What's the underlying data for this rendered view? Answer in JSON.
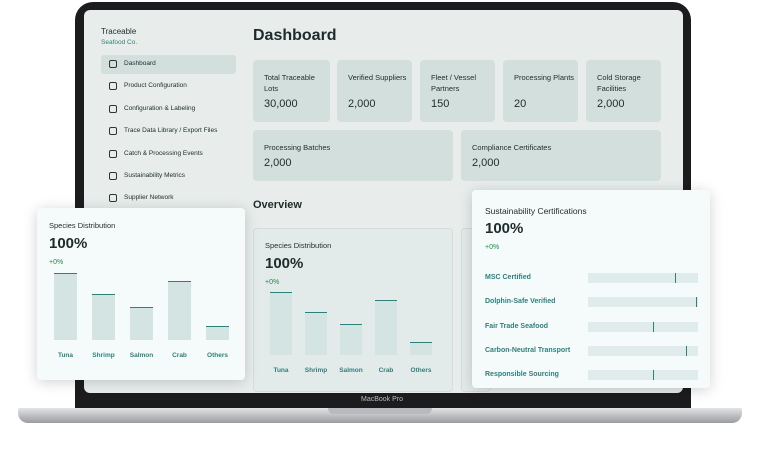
{
  "device_label": "MacBook Pro",
  "sidebar": {
    "brand": "Traceable",
    "subtitle": "Seafood Co.",
    "nav": [
      "Dashboard",
      "Product Configuration",
      "Configuration & Labeling",
      "Trace Data Library / Export Files",
      "Catch & Processing Events",
      "Sustainability Metrics",
      "Supplier Network"
    ]
  },
  "header": {
    "title": "Dashboard"
  },
  "stats": [
    {
      "label": "Total Traceable Lots",
      "value": "30,000"
    },
    {
      "label": "Verified Suppliers",
      "value": "2,000"
    },
    {
      "label": "Fleet / Vessel Partners",
      "value": "150"
    },
    {
      "label": "Processing Plants",
      "value": "20"
    },
    {
      "label": "Cold Storage Facilities",
      "value": "2,000"
    },
    {
      "label": "Processing Batches",
      "value": "2,000"
    },
    {
      "label": "Compliance Certificates",
      "value": "2,000"
    }
  ],
  "section_title": "Overview",
  "chart_data": [
    {
      "type": "bar",
      "title": "Species Distribution",
      "total": "100%",
      "change": "+0%",
      "categories": [
        "Tuna",
        "Shrimp",
        "Salmon",
        "Crab",
        "Others"
      ],
      "values": [
        67,
        46,
        33,
        59,
        14
      ],
      "color": "#d3e4e2",
      "edge_color": "#2f7f7a"
    },
    {
      "type": "hbar",
      "title": "Sustainability Certifications",
      "total": "100%",
      "change": "+0%",
      "categories": [
        "MSC Certified",
        "Dolphin-Safe Verified",
        "Fair Trade Seafood",
        "Carbon-Neutral Transport",
        "Responsible Sourcing"
      ],
      "values": [
        80,
        99,
        60,
        90,
        60
      ],
      "color": "#dfeceb",
      "edge_color": "#2f7f7a"
    }
  ]
}
